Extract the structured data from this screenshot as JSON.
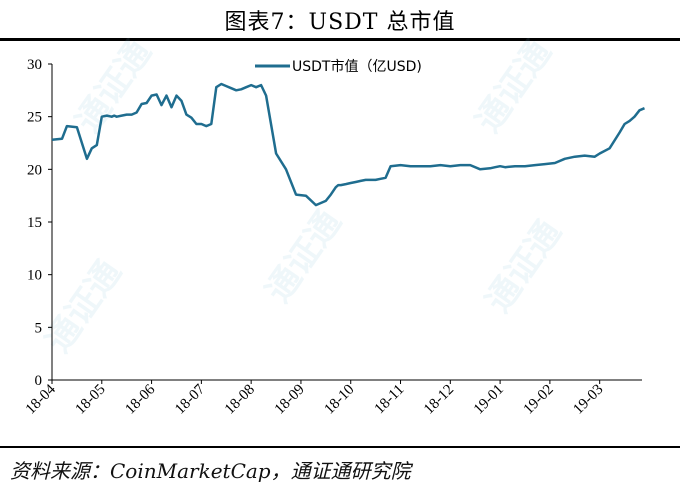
{
  "title": "图表7：USDT 总市值",
  "source": "资料来源：CoinMarketCap，通证通研究院",
  "watermark": "通证通",
  "chart_data": {
    "type": "line",
    "title": "",
    "xlabel": "",
    "ylabel": "",
    "ylim": [
      0,
      30
    ],
    "yticks": [
      0,
      5,
      10,
      15,
      20,
      25,
      30
    ],
    "xticks": [
      "18-04",
      "18-05",
      "18-06",
      "18-07",
      "18-08",
      "18-09",
      "18-10",
      "18-11",
      "18-12",
      "19-01",
      "19-02",
      "19-03"
    ],
    "grid": false,
    "legend_position": "top-center",
    "series": [
      {
        "name": "USDT市值（亿USD)",
        "color": "#1f6d8f",
        "x": [
          0.0,
          0.2,
          0.3,
          0.5,
          0.6,
          0.7,
          0.8,
          0.9,
          1.0,
          1.1,
          1.2,
          1.25,
          1.3,
          1.4,
          1.5,
          1.6,
          1.7,
          1.8,
          1.9,
          2.0,
          2.1,
          2.2,
          2.3,
          2.4,
          2.5,
          2.6,
          2.7,
          2.8,
          2.9,
          3.0,
          3.1,
          3.2,
          3.3,
          3.4,
          3.5,
          3.6,
          3.7,
          3.8,
          3.9,
          4.0,
          4.1,
          4.2,
          4.3,
          4.5,
          4.7,
          4.9,
          5.1,
          5.3,
          5.5,
          5.6,
          5.7,
          5.75,
          5.8,
          5.9,
          6.0,
          6.1,
          6.2,
          6.3,
          6.4,
          6.5,
          6.6,
          6.7,
          6.8,
          7.0,
          7.2,
          7.4,
          7.6,
          7.8,
          8.0,
          8.2,
          8.4,
          8.6,
          8.8,
          8.9,
          9.0,
          9.1,
          9.3,
          9.5,
          9.7,
          9.9,
          10.1,
          10.3,
          10.5,
          10.7,
          10.9,
          11.0,
          11.2,
          11.4,
          11.5,
          11.6,
          11.7,
          11.8,
          11.9
        ],
        "values": [
          22.8,
          22.9,
          24.1,
          24.0,
          22.5,
          21.0,
          22.0,
          22.3,
          25.0,
          25.1,
          25.0,
          25.1,
          25.0,
          25.1,
          25.2,
          25.2,
          25.4,
          26.2,
          26.3,
          27.0,
          27.1,
          26.1,
          27.0,
          25.9,
          27.0,
          26.5,
          25.2,
          24.9,
          24.3,
          24.3,
          24.1,
          24.3,
          27.8,
          28.1,
          27.9,
          27.7,
          27.5,
          27.6,
          27.8,
          28.0,
          27.8,
          28.0,
          27.0,
          21.5,
          20.0,
          17.6,
          17.5,
          16.6,
          17.0,
          17.6,
          18.3,
          18.5,
          18.5,
          18.6,
          18.7,
          18.8,
          18.9,
          19.0,
          19.0,
          19.0,
          19.1,
          19.2,
          20.3,
          20.4,
          20.3,
          20.3,
          20.3,
          20.4,
          20.3,
          20.4,
          20.4,
          20.0,
          20.1,
          20.2,
          20.3,
          20.2,
          20.3,
          20.3,
          20.4,
          20.5,
          20.6,
          21.0,
          21.2,
          21.3,
          21.2,
          21.5,
          22.0,
          23.5,
          24.3,
          24.6,
          25.0,
          25.6,
          25.8
        ]
      }
    ]
  }
}
